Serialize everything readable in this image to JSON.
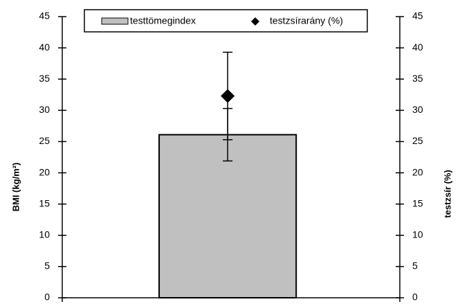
{
  "chart_data": {
    "type": "bar",
    "categories": [
      null
    ],
    "series": [
      {
        "name": "testtömegindex",
        "type": "bar",
        "color": "#c0c0c0",
        "values": [
          26.1
        ],
        "errors": [
          4.2
        ]
      },
      {
        "name": "testzsírarány (%)",
        "type": "scatter",
        "axis": "y2",
        "color": "#000000",
        "values": [
          32.3
        ],
        "errors": [
          7.0
        ]
      }
    ],
    "ylabel": "BMI (kg/m²)",
    "y2label": "testzsír (%)",
    "ylim": [
      0,
      45
    ],
    "yticks": [
      0,
      5,
      10,
      15,
      20,
      25,
      30,
      35,
      40,
      45
    ],
    "y2lim": [
      0,
      45
    ],
    "y2ticks": [
      0,
      5,
      10,
      15,
      20,
      25,
      30,
      35,
      40,
      45
    ],
    "legend": "top"
  }
}
